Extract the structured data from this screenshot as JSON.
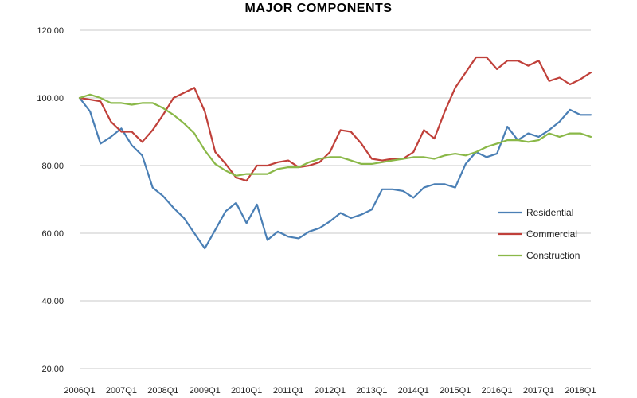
{
  "chart_data": {
    "type": "line",
    "title": "MAJOR COMPONENTS",
    "xlabel": "",
    "ylabel": "",
    "ylim": [
      20,
      120
    ],
    "y_ticks": [
      "20.00",
      "40.00",
      "60.00",
      "80.00",
      "100.00",
      "120.00"
    ],
    "y_tick_values": [
      20,
      40,
      60,
      80,
      100,
      120
    ],
    "x_tick_labels": [
      "2006Q1",
      "2007Q1",
      "2008Q1",
      "2009Q1",
      "2010Q1",
      "2011Q1",
      "2012Q1",
      "2013Q1",
      "2014Q1",
      "2015Q1",
      "2016Q1",
      "2017Q1",
      "2018Q1"
    ],
    "grid": "horizontal",
    "legend_position": "right",
    "x": [
      "2006Q1",
      "2006Q2",
      "2006Q3",
      "2006Q4",
      "2007Q1",
      "2007Q2",
      "2007Q3",
      "2007Q4",
      "2008Q1",
      "2008Q2",
      "2008Q3",
      "2008Q4",
      "2009Q1",
      "2009Q2",
      "2009Q3",
      "2009Q4",
      "2010Q1",
      "2010Q2",
      "2010Q3",
      "2010Q4",
      "2011Q1",
      "2011Q2",
      "2011Q3",
      "2011Q4",
      "2012Q1",
      "2012Q2",
      "2012Q3",
      "2012Q4",
      "2013Q1",
      "2013Q2",
      "2013Q3",
      "2013Q4",
      "2014Q1",
      "2014Q2",
      "2014Q3",
      "2014Q4",
      "2015Q1",
      "2015Q2",
      "2015Q3",
      "2015Q4",
      "2016Q1",
      "2016Q2",
      "2016Q3",
      "2016Q4",
      "2017Q1",
      "2017Q2",
      "2017Q3",
      "2017Q4",
      "2018Q1",
      "2018Q2"
    ],
    "series": [
      {
        "name": "Residential",
        "color": "#4a7fb5",
        "values": [
          100,
          96,
          86.5,
          88.5,
          91,
          86,
          83,
          73.5,
          71,
          67.5,
          64.5,
          60,
          55.5,
          61,
          66.5,
          69,
          63,
          68.5,
          58,
          60.5,
          59,
          58.5,
          60.5,
          61.5,
          63.5,
          66,
          64.5,
          65.5,
          67,
          73,
          73,
          72.5,
          70.5,
          73.5,
          74.5,
          74.5,
          73.5,
          80.5,
          84,
          82.5,
          83.5,
          91.5,
          87.5,
          89.5,
          88.5,
          90.5,
          93,
          96.5,
          95,
          95
        ]
      },
      {
        "name": "Commercial",
        "color": "#c0403a",
        "values": [
          100,
          99.5,
          99,
          93,
          90,
          90,
          87,
          90.5,
          95,
          100,
          101.5,
          103,
          96,
          84,
          80.5,
          76.5,
          75.5,
          80,
          80,
          81,
          81.5,
          79.5,
          80,
          81,
          84,
          90.5,
          90,
          86.5,
          82,
          81.5,
          82,
          82,
          84,
          90.5,
          88,
          96,
          103,
          107.5,
          112,
          112,
          108.5,
          111,
          111,
          109.5,
          111,
          105,
          106,
          104,
          105.5,
          107.5
        ]
      },
      {
        "name": "Construction",
        "color": "#8ab848",
        "values": [
          100,
          101,
          100,
          98.5,
          98.5,
          98,
          98.5,
          98.5,
          97,
          95,
          92.5,
          89.5,
          84.5,
          80.5,
          78.5,
          77,
          77.5,
          77.5,
          77.5,
          79,
          79.5,
          79.5,
          81,
          82,
          82.5,
          82.5,
          81.5,
          80.5,
          80.5,
          81,
          81.5,
          82,
          82.5,
          82.5,
          82,
          83,
          83.5,
          83,
          84,
          85.5,
          86.5,
          87.5,
          87.5,
          87,
          87.5,
          89.5,
          88.5,
          89.5,
          89.5,
          88.5
        ]
      }
    ]
  }
}
